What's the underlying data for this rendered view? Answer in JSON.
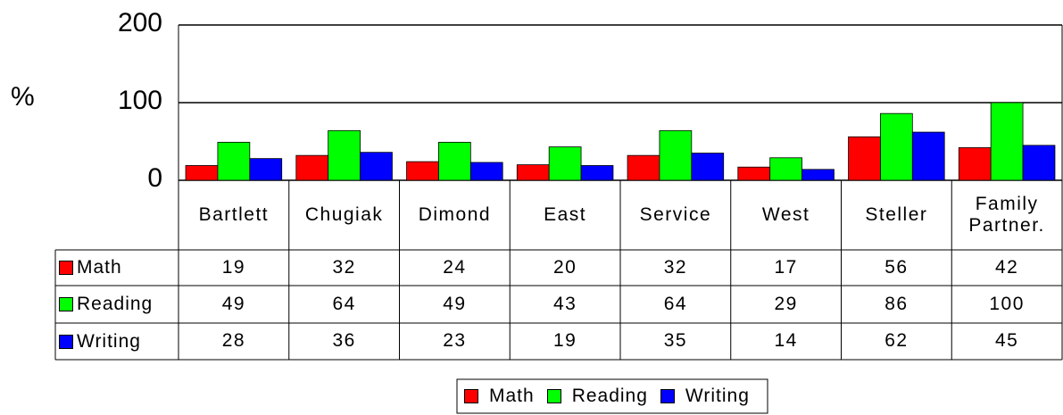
{
  "chart_data": {
    "type": "bar",
    "y_label": "%",
    "categories": [
      "Bartlett",
      "Chugiak",
      "Dimond",
      "East",
      "Service",
      "West",
      "Steller",
      "Family Partner."
    ],
    "series": [
      {
        "name": "Math",
        "color": "#ff0000",
        "values": [
          19,
          32,
          24,
          20,
          32,
          17,
          56,
          42
        ]
      },
      {
        "name": "Reading",
        "color": "#00ff00",
        "values": [
          49,
          64,
          49,
          43,
          64,
          29,
          86,
          100
        ]
      },
      {
        "name": "Writing",
        "color": "#0000ff",
        "values": [
          28,
          36,
          23,
          19,
          35,
          14,
          62,
          45
        ]
      }
    ],
    "ylim": [
      0,
      200
    ],
    "yticks": [
      0,
      100,
      200
    ],
    "grid": true,
    "legend": "bottom",
    "data_table": true
  }
}
